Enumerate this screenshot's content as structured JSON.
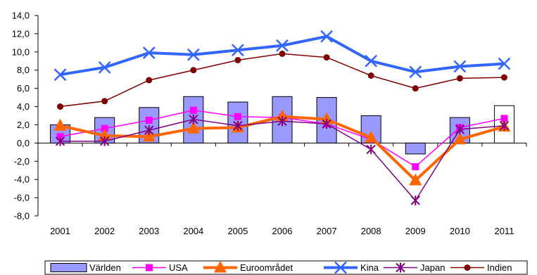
{
  "chart_data": {
    "type": "bar+line",
    "categories": [
      "2001",
      "2002",
      "2003",
      "2004",
      "2005",
      "2006",
      "2007",
      "2008",
      "2009",
      "2010",
      "2011"
    ],
    "ylim": [
      -8,
      14
    ],
    "yticks": [
      "-8,0",
      "-6,0",
      "-4,0",
      "-2,0",
      "0,0",
      "2,0",
      "4,0",
      "6,0",
      "8,0",
      "10,0",
      "12,0",
      "14,0"
    ],
    "grid": false,
    "legend_position": "bottom",
    "series": [
      {
        "name": "Världen",
        "type": "bar",
        "color": "#9999ff",
        "values": [
          2.0,
          2.8,
          3.9,
          5.1,
          4.5,
          5.1,
          5.0,
          3.0,
          -1.2,
          2.8,
          4.1
        ],
        "highlight_last": true
      },
      {
        "name": "USA",
        "type": "line",
        "color": "#ff00ff",
        "marker": "square",
        "values": [
          0.7,
          1.6,
          2.5,
          3.6,
          2.9,
          2.8,
          2.1,
          0.4,
          -2.6,
          1.7,
          2.7
        ]
      },
      {
        "name": "Euroområdet",
        "type": "line",
        "color": "#ff6600",
        "marker": "triangle",
        "values": [
          1.9,
          0.8,
          0.7,
          1.6,
          1.7,
          2.9,
          2.6,
          0.6,
          -4.1,
          0.4,
          1.8
        ]
      },
      {
        "name": "Kina",
        "type": "line",
        "color": "#3366ff",
        "marker": "x",
        "values": [
          7.5,
          8.3,
          9.9,
          9.7,
          10.2,
          10.7,
          11.7,
          9.0,
          7.8,
          8.4,
          8.7
        ]
      },
      {
        "name": "Japan",
        "type": "line",
        "color": "#800080",
        "marker": "star",
        "values": [
          0.2,
          0.2,
          1.4,
          2.6,
          1.9,
          2.4,
          2.1,
          -0.7,
          -6.3,
          1.5,
          1.9
        ]
      },
      {
        "name": "Indien",
        "type": "line",
        "color": "#800000",
        "marker": "circle",
        "values": [
          4.0,
          4.6,
          6.9,
          8.0,
          9.1,
          9.8,
          9.4,
          7.4,
          6.0,
          7.1,
          7.2
        ]
      }
    ]
  }
}
